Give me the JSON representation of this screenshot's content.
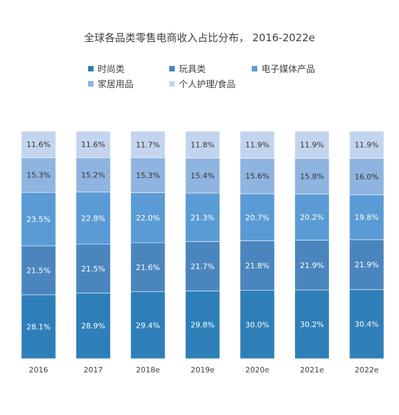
{
  "chart_data": {
    "type": "bar",
    "stacked": true,
    "percent_stacked": true,
    "title": "全球各品类零售电商收入占比分布， 2016-2022e",
    "categories": [
      "2016",
      "2017",
      "2018e",
      "2019e",
      "2020e",
      "2021e",
      "2022e"
    ],
    "series": [
      {
        "name": "时尚类",
        "color": "#2e7fb8",
        "values": [
          28.1,
          28.9,
          29.4,
          29.8,
          30.0,
          30.2,
          30.4
        ],
        "labels": [
          "28.1%",
          "28.9%",
          "29.4%",
          "29.8%",
          "30.0%",
          "30.2%",
          "30.4%"
        ]
      },
      {
        "name": "玩具类",
        "color": "#4a86bd",
        "values": [
          21.5,
          21.5,
          21.6,
          21.7,
          21.8,
          21.9,
          21.9
        ],
        "labels": [
          "21.5%",
          "21.5%",
          "21.6%",
          "21.7%",
          "21.8%",
          "21.9%",
          "21.9%"
        ]
      },
      {
        "name": "电子媒体产品",
        "color": "#5b9bd5",
        "values": [
          23.5,
          22.8,
          22.0,
          21.3,
          20.7,
          20.2,
          19.8
        ],
        "labels": [
          "23.5%",
          "22.8%",
          "22.0%",
          "21.3%",
          "20.7%",
          "20.2%",
          "19.8%"
        ]
      },
      {
        "name": "家居用品",
        "color": "#8fb4e0",
        "values": [
          15.3,
          15.2,
          15.3,
          15.4,
          15.6,
          15.8,
          16.0
        ],
        "labels": [
          "15.3%",
          "15.2%",
          "15.3%",
          "15.4%",
          "15.6%",
          "15.8%",
          "16.0%"
        ]
      },
      {
        "name": "个人护理/食品",
        "color": "#c3d5ee",
        "values": [
          11.6,
          11.6,
          11.7,
          11.8,
          11.9,
          11.9,
          11.9
        ],
        "labels": [
          "11.6%",
          "11.6%",
          "11.7%",
          "11.8%",
          "11.9%",
          "11.9%",
          "11.9%"
        ]
      }
    ],
    "legend_position": "top",
    "grid": false
  }
}
